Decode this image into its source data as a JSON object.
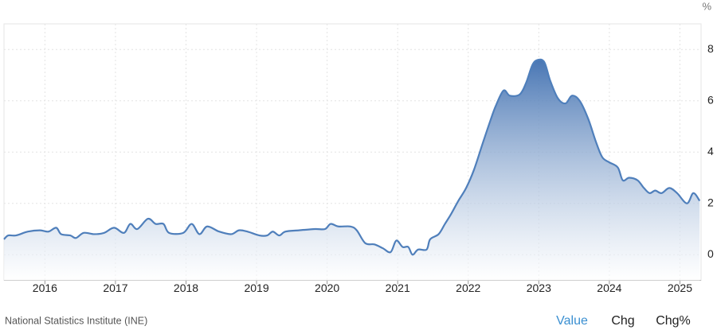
{
  "chart_data": {
    "type": "area",
    "unit": "%",
    "color": "#4f7fbb",
    "grid": true,
    "x": [
      2015.42,
      2015.48,
      2015.59,
      2015.76,
      2015.93,
      2016.05,
      2016.16,
      2016.23,
      2016.36,
      2016.44,
      2016.55,
      2016.7,
      2016.84,
      2016.98,
      2017.12,
      2017.21,
      2017.31,
      2017.46,
      2017.57,
      2017.68,
      2017.76,
      2017.96,
      2018.08,
      2018.19,
      2018.3,
      2018.47,
      2018.64,
      2018.75,
      2018.87,
      2019.04,
      2019.15,
      2019.23,
      2019.32,
      2019.41,
      2019.6,
      2019.83,
      2019.97,
      2020.05,
      2020.16,
      2020.33,
      2020.42,
      2020.54,
      2020.67,
      2020.79,
      2020.9,
      2020.98,
      2021.07,
      2021.15,
      2021.21,
      2021.29,
      2021.41,
      2021.46,
      2021.58,
      2021.67,
      2021.76,
      2021.86,
      2021.97,
      2022.08,
      2022.2,
      2022.31,
      2022.39,
      2022.5,
      2022.59,
      2022.73,
      2022.82,
      2022.91,
      2022.99,
      2023.08,
      2023.16,
      2023.27,
      2023.38,
      2023.47,
      2023.58,
      2023.7,
      2023.81,
      2023.9,
      2024.0,
      2024.12,
      2024.19,
      2024.28,
      2024.4,
      2024.49,
      2024.57,
      2024.65,
      2024.74,
      2024.85,
      2024.96,
      2025.1,
      2025.19,
      2025.28
    ],
    "values": [
      0.6,
      0.75,
      0.75,
      0.9,
      0.95,
      0.9,
      1.05,
      0.8,
      0.75,
      0.65,
      0.85,
      0.8,
      0.85,
      1.05,
      0.85,
      1.2,
      1.0,
      1.4,
      1.2,
      1.2,
      0.85,
      0.85,
      1.2,
      0.8,
      1.1,
      0.9,
      0.8,
      0.95,
      0.9,
      0.75,
      0.75,
      0.9,
      0.75,
      0.9,
      0.95,
      1.0,
      1.0,
      1.2,
      1.1,
      1.1,
      0.95,
      0.45,
      0.4,
      0.25,
      0.1,
      0.55,
      0.3,
      0.3,
      0.0,
      0.2,
      0.2,
      0.6,
      0.8,
      1.2,
      1.6,
      2.1,
      2.6,
      3.3,
      4.3,
      5.2,
      5.8,
      6.4,
      6.2,
      6.25,
      6.7,
      7.4,
      7.6,
      7.5,
      6.8,
      6.1,
      5.9,
      6.2,
      6.0,
      5.3,
      4.4,
      3.8,
      3.6,
      3.4,
      2.9,
      3.0,
      2.9,
      2.6,
      2.4,
      2.5,
      2.4,
      2.6,
      2.4,
      2.0,
      2.4,
      2.1
    ],
    "xlim": [
      2015.42,
      2025.3
    ],
    "xticks": [
      2016,
      2017,
      2018,
      2019,
      2020,
      2021,
      2022,
      2023,
      2024,
      2025
    ],
    "ylim": [
      -1,
      9
    ],
    "yticks": [
      0,
      2,
      4,
      6,
      8
    ]
  },
  "footer": {
    "source": "National Statistics Institute (INE)",
    "tabs": [
      "Value",
      "Chg",
      "Chg%"
    ]
  }
}
